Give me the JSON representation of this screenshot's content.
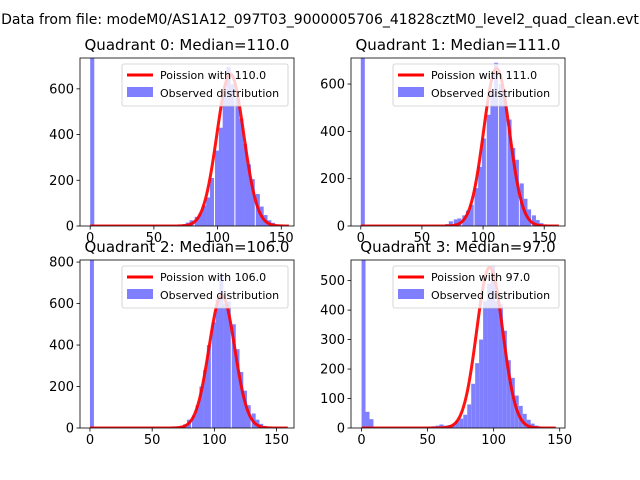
{
  "figure": {
    "suptitle": "Data from file: modeM0/AS1A12_097T03_9000005706_41828cztM0_level2_quad_clean.evt"
  },
  "colors": {
    "bars": "#8080ff",
    "fit": "#ff0000",
    "axis": "#000000"
  },
  "chart_data": [
    {
      "type": "bar",
      "title": "Quadrant 0: Median=110.0",
      "legend_location": "top-right",
      "xlim": [
        -8,
        160
      ],
      "ylim": [
        0,
        735
      ],
      "xticks": [
        0,
        50,
        100,
        150
      ],
      "yticks": [
        0,
        200,
        400,
        600
      ],
      "xticklabels": [
        "0",
        "50",
        "100",
        "150"
      ],
      "yticklabels": [
        "0",
        "200",
        "400",
        "600"
      ],
      "fit": {
        "label": "Poission with 110.0",
        "mean": 110.0,
        "peak": 665,
        "xrange": [
          0,
          156
        ]
      },
      "series": [
        {
          "name": "Observed distribution",
          "bin_width": 3.2,
          "bins": [
            [
              0,
              735
            ],
            [
              66,
              2
            ],
            [
              69,
              5
            ],
            [
              72,
              8
            ],
            [
              75,
              15
            ],
            [
              78,
              25
            ],
            [
              82,
              40
            ],
            [
              85,
              55
            ],
            [
              88,
              90
            ],
            [
              91,
              125
            ],
            [
              94,
              210
            ],
            [
              98,
              330
            ],
            [
              101,
              430
            ],
            [
              104,
              565
            ],
            [
              107,
              695
            ],
            [
              110,
              620
            ],
            [
              114,
              560
            ],
            [
              117,
              470
            ],
            [
              120,
              360
            ],
            [
              123,
              270
            ],
            [
              126,
              205
            ],
            [
              130,
              140
            ],
            [
              133,
              85
            ],
            [
              136,
              48
            ],
            [
              139,
              25
            ],
            [
              142,
              14
            ],
            [
              146,
              6
            ],
            [
              149,
              3
            ]
          ]
        }
      ]
    },
    {
      "type": "bar",
      "title": "Quadrant 1: Median=111.0",
      "legend_location": "top-right",
      "xlim": [
        -8,
        167
      ],
      "ylim": [
        0,
        710
      ],
      "xticks": [
        0,
        50,
        100,
        150
      ],
      "yticks": [
        0,
        200,
        400,
        600
      ],
      "xticklabels": [
        "0",
        "50",
        "100",
        "150"
      ],
      "yticklabels": [
        "0",
        "200",
        "400",
        "600"
      ],
      "fit": {
        "label": "Poission with 111.0",
        "mean": 111.0,
        "peak": 665,
        "xrange": [
          0,
          162
        ]
      },
      "series": [
        {
          "name": "Observed distribution",
          "bin_width": 3.3,
          "bins": [
            [
              0,
              710
            ],
            [
              69,
              8
            ],
            [
              72,
              20
            ],
            [
              76,
              28
            ],
            [
              79,
              32
            ],
            [
              83,
              45
            ],
            [
              86,
              65
            ],
            [
              89,
              90
            ],
            [
              93,
              160
            ],
            [
              96,
              250
            ],
            [
              99,
              370
            ],
            [
              103,
              470
            ],
            [
              106,
              560
            ],
            [
              109,
              690
            ],
            [
              113,
              600
            ],
            [
              116,
              570
            ],
            [
              120,
              450
            ],
            [
              123,
              330
            ],
            [
              126,
              280
            ],
            [
              130,
              180
            ],
            [
              133,
              115
            ],
            [
              136,
              70
            ],
            [
              140,
              45
            ],
            [
              143,
              25
            ],
            [
              146,
              12
            ],
            [
              150,
              5
            ],
            [
              153,
              3
            ]
          ]
        }
      ]
    },
    {
      "type": "bar",
      "title": "Quadrant 2: Median=106.0",
      "legend_location": "top-right",
      "xlim": [
        -8,
        164
      ],
      "ylim": [
        0,
        810
      ],
      "xticks": [
        0,
        50,
        100,
        150
      ],
      "yticks": [
        0,
        200,
        400,
        600,
        800
      ],
      "xticklabels": [
        "0",
        "50",
        "100",
        "150"
      ],
      "yticklabels": [
        "0",
        "200",
        "400",
        "600",
        "800"
      ],
      "fit": {
        "label": "Poission with 106.0",
        "mean": 106.0,
        "peak": 640,
        "xrange": [
          0,
          159
        ]
      },
      "series": [
        {
          "name": "Observed distribution",
          "bin_width": 3.2,
          "bins": [
            [
              0,
              810
            ],
            [
              66,
              3
            ],
            [
              69,
              6
            ],
            [
              72,
              10
            ],
            [
              75,
              18
            ],
            [
              78,
              40
            ],
            [
              82,
              60
            ],
            [
              85,
              110
            ],
            [
              88,
              200
            ],
            [
              91,
              280
            ],
            [
              94,
              400
            ],
            [
              98,
              510
            ],
            [
              101,
              620
            ],
            [
              104,
              740
            ],
            [
              107,
              600
            ],
            [
              110,
              610
            ],
            [
              114,
              500
            ],
            [
              117,
              380
            ],
            [
              120,
              270
            ],
            [
              123,
              180
            ],
            [
              126,
              110
            ],
            [
              130,
              70
            ],
            [
              133,
              40
            ],
            [
              136,
              20
            ],
            [
              139,
              10
            ],
            [
              142,
              5
            ]
          ]
        }
      ]
    },
    {
      "type": "bar",
      "title": "Quadrant 3: Median=97.0",
      "legend_location": "top-right",
      "xlim": [
        -8,
        154
      ],
      "ylim": [
        0,
        570
      ],
      "xticks": [
        0,
        50,
        100,
        150
      ],
      "yticks": [
        0,
        100,
        200,
        300,
        400,
        500
      ],
      "xticklabels": [
        "0",
        "50",
        "100",
        "150"
      ],
      "yticklabels": [
        "0",
        "100",
        "200",
        "300",
        "400",
        "500"
      ],
      "fit": {
        "label": "Poission with 97.0",
        "mean": 97.0,
        "peak": 545,
        "xrange": [
          0,
          147
        ]
      },
      "series": [
        {
          "name": "Observed distribution",
          "bin_width": 3.0,
          "bins": [
            [
              0,
              570
            ],
            [
              3,
              55
            ],
            [
              6,
              30
            ],
            [
              50,
              4
            ],
            [
              53,
              6
            ],
            [
              56,
              8
            ],
            [
              59,
              12
            ],
            [
              62,
              8
            ],
            [
              65,
              10
            ],
            [
              68,
              12
            ],
            [
              71,
              25
            ],
            [
              74,
              32
            ],
            [
              77,
              45
            ],
            [
              80,
              80
            ],
            [
              83,
              150
            ],
            [
              86,
              220
            ],
            [
              89,
              300
            ],
            [
              92,
              430
            ],
            [
              95,
              490
            ],
            [
              98,
              550
            ],
            [
              101,
              430
            ],
            [
              104,
              420
            ],
            [
              107,
              330
            ],
            [
              110,
              230
            ],
            [
              113,
              170
            ],
            [
              116,
              110
            ],
            [
              119,
              75
            ],
            [
              122,
              48
            ],
            [
              125,
              28
            ],
            [
              128,
              15
            ],
            [
              131,
              8
            ],
            [
              134,
              4
            ]
          ]
        }
      ]
    }
  ]
}
